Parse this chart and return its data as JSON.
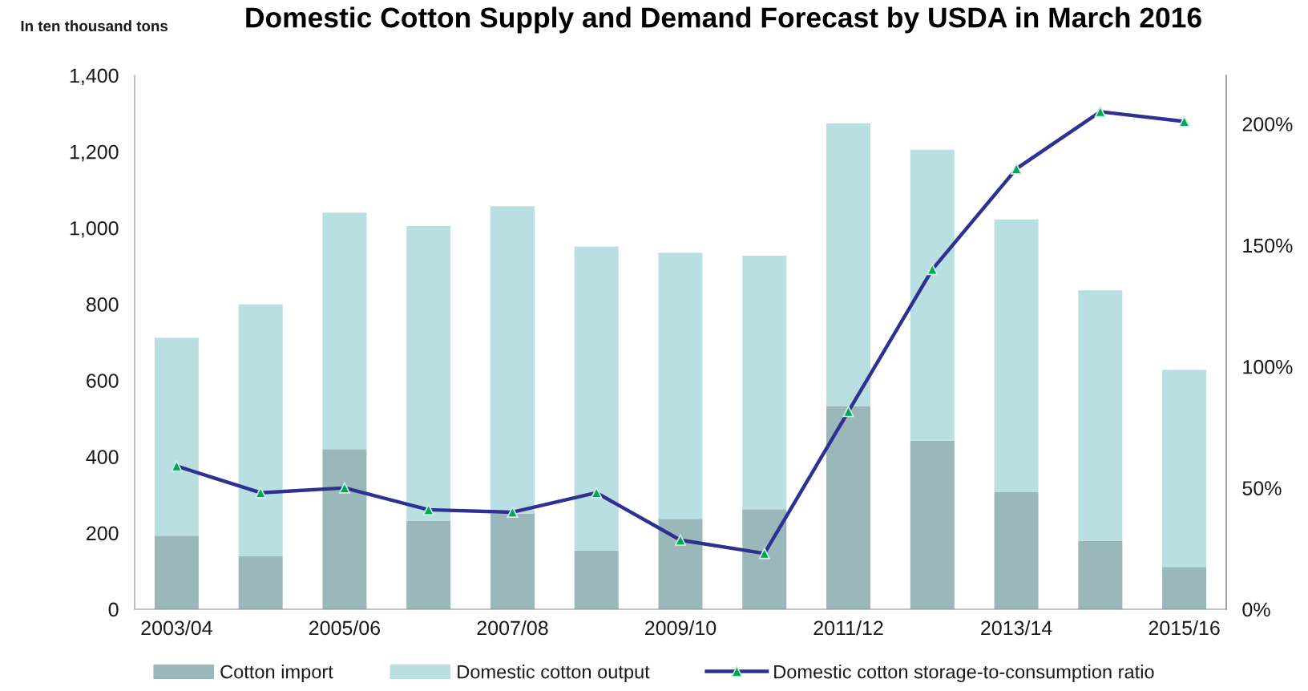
{
  "chart_data": {
    "type": "bar",
    "title": "Domestic Cotton Supply and Demand Forecast by USDA in March 2016",
    "ylabel": "In ten thousand tons",
    "categories": [
      "2003/04",
      null,
      "2005/06",
      null,
      "2007/08",
      null,
      "2009/10",
      null,
      "2011/12",
      null,
      "2013/14",
      null,
      "2015/16"
    ],
    "stacked": true,
    "series": [
      {
        "name": "Cotton import",
        "color": "#9ab8b9",
        "values": [
          193,
          140,
          420,
          232,
          251,
          154,
          237,
          262,
          533,
          442,
          307,
          179,
          111
        ]
      },
      {
        "name": "Domestic cotton output",
        "color": "#b9dfe3",
        "values": [
          519,
          660,
          620,
          773,
          806,
          797,
          698,
          665,
          741,
          763,
          715,
          657,
          517
        ]
      },
      {
        "name": "Domestic cotton storage-to-consumption ratio",
        "type": "line",
        "axis": "y2",
        "marker": "triangle",
        "color": "#2e3192",
        "values": [
          59,
          48,
          50,
          41,
          40,
          48,
          28.5,
          23,
          81.5,
          140,
          181.5,
          205,
          201
        ]
      }
    ],
    "ylim": [
      0,
      1400
    ],
    "yticks": [
      0,
      200,
      400,
      600,
      800,
      {
        "value": 1000,
        "label": "1,000"
      },
      {
        "value": 1200,
        "label": "1,200"
      },
      {
        "value": 1400,
        "label": "1,400"
      }
    ],
    "y2lim": [
      0,
      220
    ],
    "y2ticks": [
      {
        "value": 0,
        "label": "0%"
      },
      {
        "value": 50,
        "label": "50%"
      },
      {
        "value": 100,
        "label": "100%"
      },
      {
        "value": 150,
        "label": "150%"
      },
      {
        "value": 200,
        "label": "200%"
      }
    ],
    "legend": "bottom"
  }
}
